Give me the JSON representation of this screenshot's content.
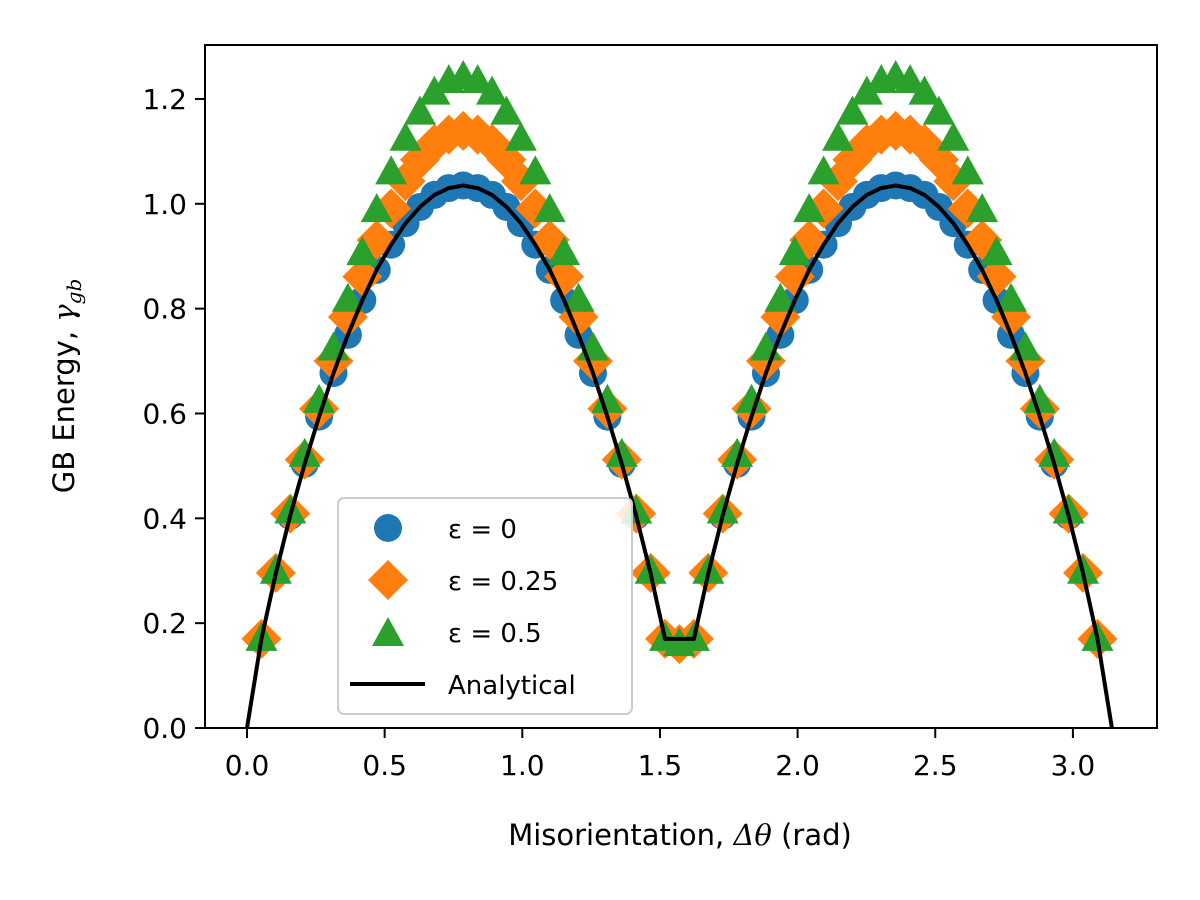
{
  "chart_data": {
    "type": "scatter",
    "title": "",
    "xlabel": {
      "text": "Misorientation, ",
      "symbol": "Δθ",
      "unit": " (rad)"
    },
    "ylabel": {
      "text": "GB Energy, ",
      "symbol": "γ",
      "sub": "gb"
    },
    "xlim": [
      -0.15,
      3.3
    ],
    "ylim": [
      0.0,
      1.3
    ],
    "xticks": [
      0.0,
      0.5,
      1.0,
      1.5,
      2.0,
      2.5,
      3.0
    ],
    "xtick_labels": [
      "0.0",
      "0.5",
      "1.0",
      "1.5",
      "2.0",
      "2.5",
      "3.0"
    ],
    "yticks": [
      0.0,
      0.2,
      0.4,
      0.6,
      0.8,
      1.0,
      1.2
    ],
    "ytick_labels": [
      "0.0",
      "0.2",
      "0.4",
      "0.6",
      "0.8",
      "1.0",
      "1.2"
    ],
    "grid": false,
    "legend_placement": "lower-center-left",
    "x_step_note": "points at k*pi/60, k=1..59",
    "series": [
      {
        "name": "ε = 0",
        "marker": "circle",
        "color": "#1f77b4",
        "values_half": [
          0.17,
          0.295,
          0.405,
          0.504,
          0.594,
          0.677,
          0.75,
          0.816,
          0.874,
          0.922,
          0.963,
          0.994,
          1.017,
          1.03,
          1.035,
          1.03,
          1.017,
          0.994,
          0.963,
          0.922,
          0.874,
          0.816,
          0.75,
          0.677,
          0.594,
          0.504,
          0.405,
          0.295,
          0.17,
          0.16
        ]
      },
      {
        "name": "ε = 0.25",
        "marker": "diamond",
        "color": "#ff7f0e",
        "values_half": [
          0.17,
          0.296,
          0.409,
          0.512,
          0.609,
          0.7,
          0.784,
          0.861,
          0.931,
          0.991,
          1.043,
          1.084,
          1.114,
          1.132,
          1.139,
          1.132,
          1.114,
          1.084,
          1.043,
          0.991,
          0.931,
          0.861,
          0.784,
          0.7,
          0.609,
          0.512,
          0.409,
          0.296,
          0.17,
          0.16
        ]
      },
      {
        "name": "ε = 0.5",
        "marker": "triangle",
        "color": "#2ca02c",
        "values_half": [
          0.17,
          0.298,
          0.413,
          0.521,
          0.624,
          0.724,
          0.817,
          0.906,
          0.988,
          1.06,
          1.124,
          1.174,
          1.212,
          1.234,
          1.242,
          1.234,
          1.212,
          1.174,
          1.124,
          1.06,
          0.988,
          0.906,
          0.817,
          0.724,
          0.624,
          0.521,
          0.413,
          0.298,
          0.17,
          0.16
        ]
      }
    ],
    "analytical": {
      "name": "Analytical",
      "color": "#000000",
      "values_half": [
        0.0,
        0.17,
        0.295,
        0.405,
        0.504,
        0.594,
        0.677,
        0.75,
        0.816,
        0.874,
        0.922,
        0.963,
        0.994,
        1.017,
        1.03,
        1.035,
        1.03,
        1.017,
        0.994,
        0.963,
        0.922,
        0.874,
        0.816,
        0.75,
        0.677,
        0.594,
        0.504,
        0.405,
        0.295,
        0.17,
        0.17
      ]
    }
  }
}
